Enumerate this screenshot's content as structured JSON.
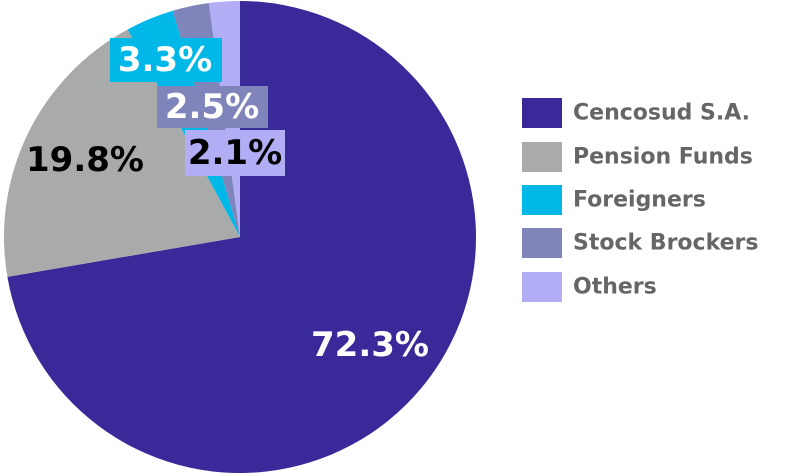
{
  "chart_data": {
    "type": "pie",
    "categories": [
      "Cencosud S.A.",
      "Pension Funds",
      "Foreigners",
      "Stock Brockers",
      "Others"
    ],
    "values": [
      72.3,
      19.8,
      3.3,
      2.5,
      2.1
    ],
    "value_labels": [
      "72.3%",
      "19.8%",
      "3.3%",
      "2.5%",
      "2.1%"
    ],
    "colors": [
      "#3a2a99",
      "#a9abab",
      "#00b8e8",
      "#7f85bb",
      "#b2aef6"
    ],
    "legend": "right"
  }
}
